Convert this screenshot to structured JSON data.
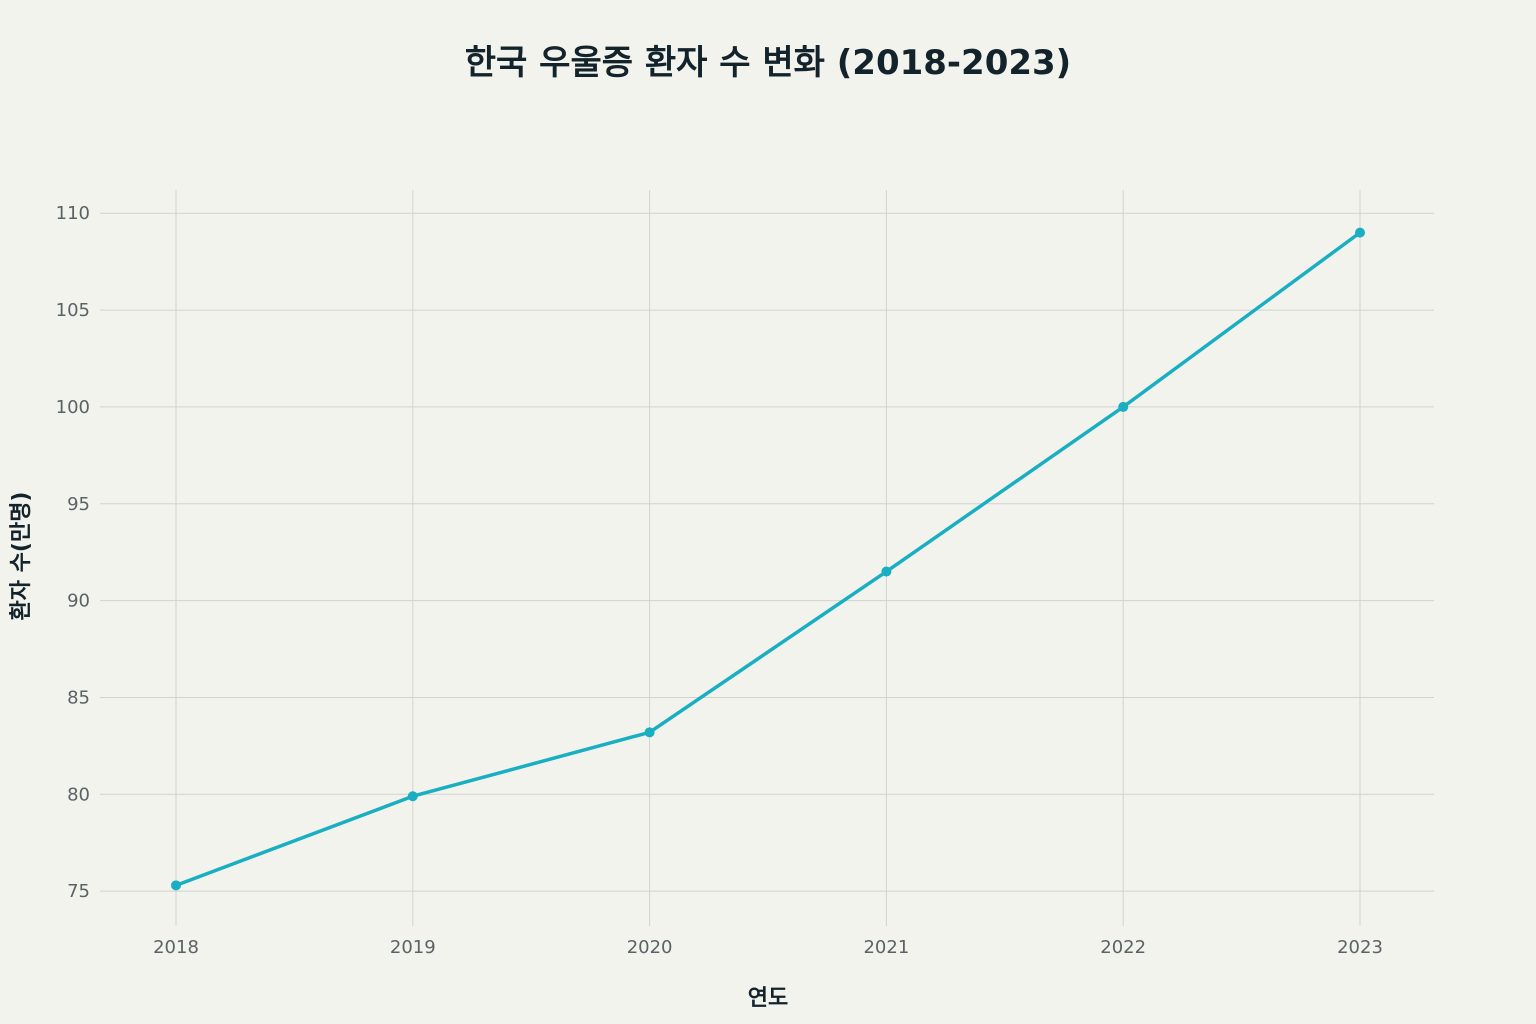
{
  "chart_data": {
    "type": "line",
    "title": "한국 우울증 환자 수 변화 (2018-2023)",
    "xlabel": "연도",
    "ylabel": "환자 수(만명)",
    "categories": [
      "2018",
      "2019",
      "2020",
      "2021",
      "2022",
      "2023"
    ],
    "series": [
      {
        "values": [
          75.3,
          79.9,
          83.2,
          91.5,
          100.0,
          109.0
        ],
        "color": "#1aaec2"
      }
    ],
    "yticks": [
      75,
      80,
      85,
      90,
      95,
      100,
      105,
      110
    ],
    "ylim": [
      73.2,
      111.2
    ],
    "grid": true,
    "legend": "none"
  }
}
